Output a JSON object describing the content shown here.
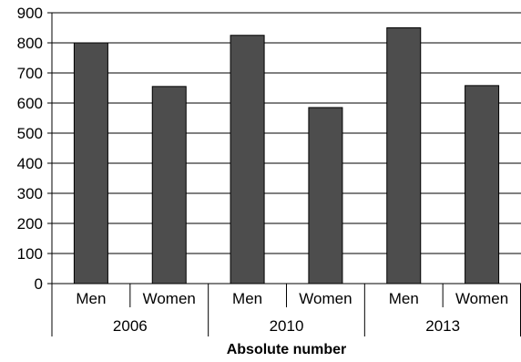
{
  "chart_data": {
    "type": "bar",
    "title": "",
    "xlabel": "Absolute number",
    "ylabel": "",
    "ylim": [
      0,
      900
    ],
    "yticks": [
      0,
      100,
      200,
      300,
      400,
      500,
      600,
      700,
      800,
      900
    ],
    "grid": true,
    "bar_color": "#4d4d4d",
    "groups": [
      "2006",
      "2010",
      "2013"
    ],
    "categories": [
      "Men",
      "Women",
      "Men",
      "Women",
      "Men",
      "Women"
    ],
    "category_group": [
      0,
      0,
      1,
      1,
      2,
      2
    ],
    "values": [
      800,
      655,
      825,
      585,
      850,
      658
    ]
  }
}
